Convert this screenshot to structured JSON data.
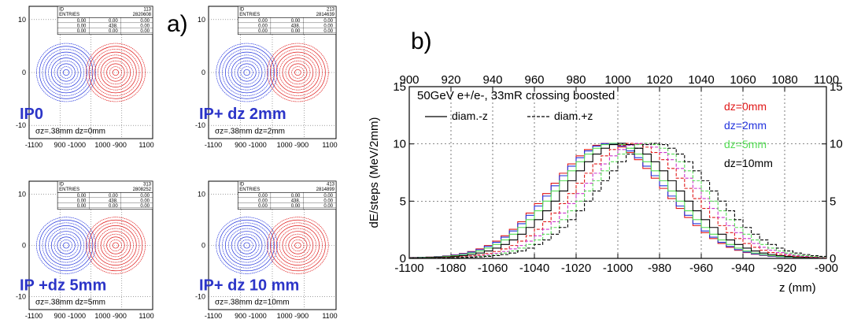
{
  "panel_a_label": "a)",
  "panel_b_label": "b)",
  "colors": {
    "blue": "#2233dd",
    "red": "#e01818",
    "ip_text": "#2c35c8",
    "green": "#55dd55",
    "magenta": "#cc33cc"
  },
  "chart_data": [
    {
      "type": "contour",
      "panel": "a-top-left",
      "label": "IP0",
      "sigma_text": "σz=.38mm dz=0mm",
      "stats": {
        "id_label": "ID",
        "id": "113",
        "entries_label": "ENTRIES",
        "entries": "2820608",
        "rows": [
          [
            "0.00",
            "0.00",
            "0.00"
          ],
          [
            "0.00",
            "438.",
            "0.00"
          ],
          [
            "0.00",
            "0.00",
            "0.00"
          ]
        ]
      },
      "x_ticks": [
        "-1100",
        "900 -1000",
        "1000 -900",
        "1100"
      ],
      "y_ticks": [
        "10",
        "0",
        "-10"
      ],
      "blue_center": 920,
      "red_center": 1080
    },
    {
      "type": "contour",
      "panel": "a-top-right",
      "label": "IP+ dz 2mm",
      "sigma_text": "σz=.38mm dz=2mm",
      "stats": {
        "id_label": "ID",
        "id": "213",
        "entries_label": "ENTRIES",
        "entries": "2814639",
        "rows": [
          [
            "0.00",
            "0.00",
            "0.00"
          ],
          [
            "0.00",
            "438.",
            "0.00"
          ],
          [
            "0.00",
            "0.00",
            "0.00"
          ]
        ]
      },
      "x_ticks": [
        "-1100",
        "900 -1000",
        "1000 -900",
        "1100"
      ],
      "y_ticks": [
        "10",
        "0",
        "-10"
      ],
      "blue_center": 920,
      "red_center": 1080
    },
    {
      "type": "contour",
      "panel": "a-bottom-left",
      "label": "IP +dz 5mm",
      "sigma_text": "σz=.38mm dz=5mm",
      "stats": {
        "id_label": "ID",
        "id": "313",
        "entries_label": "ENTRIES",
        "entries": "2808252",
        "rows": [
          [
            "0.00",
            "0.00",
            "0.00"
          ],
          [
            "0.00",
            "438.",
            "0.00"
          ],
          [
            "0.00",
            "0.00",
            "0.00"
          ]
        ]
      },
      "x_ticks": [
        "-1100",
        "900 -1000",
        "1000 -900",
        "1100"
      ],
      "y_ticks": [
        "10",
        "0",
        "-10"
      ],
      "blue_center": 920,
      "red_center": 1080
    },
    {
      "type": "contour",
      "panel": "a-bottom-right",
      "label": "IP+ dz 10 mm",
      "sigma_text": "σz=.38mm dz=10mm",
      "stats": {
        "id_label": "ID",
        "id": "413",
        "entries_label": "ENTRIES",
        "entries": "2814899",
        "rows": [
          [
            "0.00",
            "0.00",
            "0.00"
          ],
          [
            "0.00",
            "438.",
            "0.00"
          ],
          [
            "0.00",
            "0.00",
            "0.00"
          ]
        ]
      },
      "x_ticks": [
        "-1100",
        "900 -1000",
        "1000 -900",
        "1100"
      ],
      "y_ticks": [
        "10",
        "0",
        "-10"
      ],
      "blue_center": 920,
      "red_center": 1080
    },
    {
      "type": "line",
      "panel": "b",
      "title": "50GeV e+/e-, 33mR crossing boosted",
      "ylabel": "dE/steps (MeV/2mm)",
      "xlabel": "z (mm)",
      "xlim": [
        -1100,
        -900
      ],
      "top_xlim": [
        900,
        1100
      ],
      "ylim": [
        0,
        15
      ],
      "x_ticks": [
        -1100,
        -1080,
        -1060,
        -1040,
        -1020,
        -1000,
        -980,
        -960,
        -940,
        -920,
        -900
      ],
      "x_top_ticks": [
        900,
        920,
        940,
        960,
        980,
        1000,
        1020,
        1040,
        1060,
        1080,
        1100
      ],
      "y_ticks": [
        0,
        5,
        10,
        15
      ],
      "grid": true,
      "legend_styles": [
        {
          "name": "diam.-z",
          "style": "solid"
        },
        {
          "name": "diam.+z",
          "style": "dashed"
        }
      ],
      "legend_dz": [
        {
          "name": "dz=0mm",
          "color": "#e01818"
        },
        {
          "name": "dz=2mm",
          "color": "#2233dd"
        },
        {
          "name": "dz=5mm",
          "color": "#55dd55"
        },
        {
          "name": "dz=10mm",
          "color": "#000000"
        }
      ],
      "series": [
        {
          "color": "#e01818",
          "style": "solid",
          "peak": -1005,
          "sigma": 27,
          "amp": 10
        },
        {
          "color": "#2233dd",
          "style": "solid",
          "peak": -1004,
          "sigma": 27,
          "amp": 10
        },
        {
          "color": "#55dd55",
          "style": "solid",
          "peak": -1002,
          "sigma": 27,
          "amp": 10
        },
        {
          "color": "#000000",
          "style": "solid",
          "peak": -998,
          "sigma": 27,
          "amp": 10
        },
        {
          "color": "#e01818",
          "style": "dashed",
          "peak": -993,
          "sigma": 27,
          "amp": 10
        },
        {
          "color": "#cc33cc",
          "style": "dashed",
          "peak": -989,
          "sigma": 27,
          "amp": 10
        },
        {
          "color": "#55dd55",
          "style": "dashed",
          "peak": -986,
          "sigma": 27,
          "amp": 10
        },
        {
          "color": "#000000",
          "style": "dashed",
          "peak": -982,
          "sigma": 27,
          "amp": 10
        }
      ]
    }
  ]
}
